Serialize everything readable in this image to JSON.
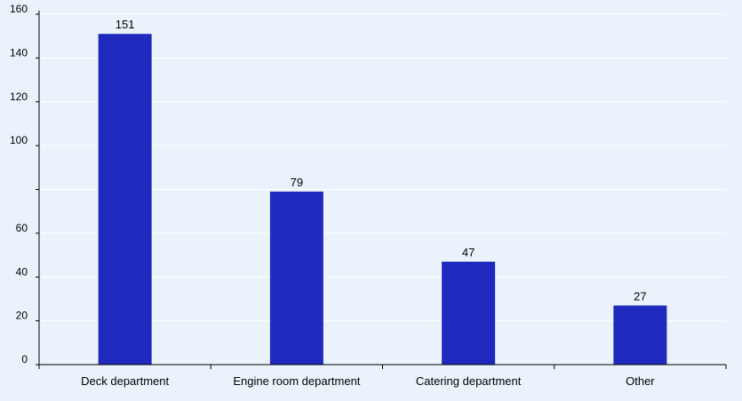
{
  "chart_data": {
    "type": "bar",
    "categories": [
      "Deck department",
      "Engine room department",
      "Catering department",
      "Other"
    ],
    "values": [
      151,
      79,
      47,
      27
    ],
    "data_labels": [
      "151",
      "79",
      "47",
      "27"
    ],
    "ylim": [
      0,
      160
    ],
    "yticks": [
      0,
      20,
      40,
      60,
      80,
      100,
      120,
      140,
      160
    ],
    "ytick_labels": [
      "0",
      "20",
      "40",
      "60",
      "",
      "100",
      "120",
      "140",
      "160"
    ],
    "grid": true,
    "legend": "none",
    "colors": {
      "bar": "#1f29bd",
      "background": "#eaf3fb",
      "grid": "#ffffff",
      "axis": "#000000"
    }
  }
}
